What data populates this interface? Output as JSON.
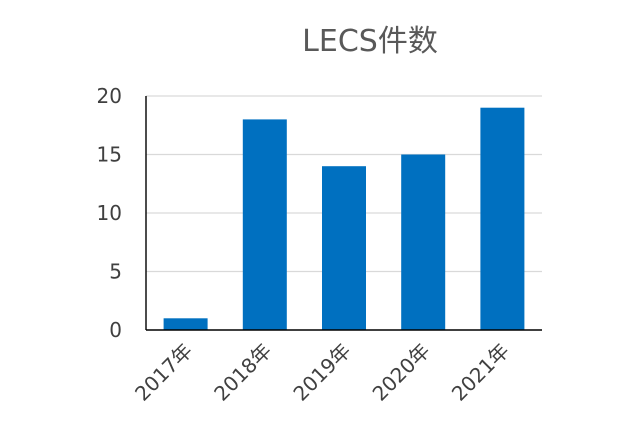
{
  "chart_data": {
    "type": "bar",
    "title": "LECS件数",
    "categories": [
      "2017年",
      "2018年",
      "2019年",
      "2020年",
      "2021年"
    ],
    "values": [
      1,
      18,
      14,
      15,
      19
    ],
    "ylim": [
      0,
      20
    ],
    "yticks": [
      "0",
      "5",
      "10",
      "15",
      "20"
    ],
    "grid": true,
    "legend": "none",
    "bar_color": "#0070c0"
  }
}
